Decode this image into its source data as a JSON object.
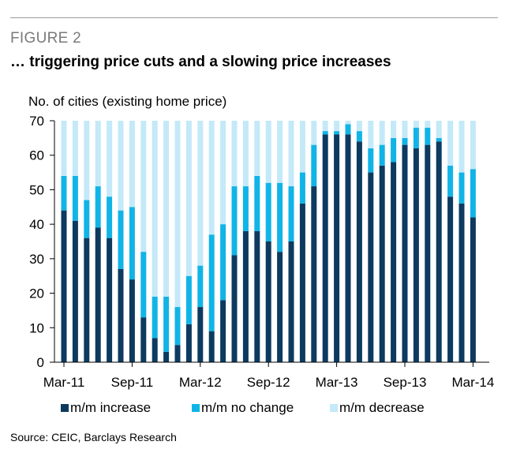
{
  "figure_label": "FIGURE 2",
  "title": "… triggering price cuts and a slowing price increases",
  "source": "Source: CEIC, Barclays Research",
  "colors": {
    "increase": "#0d3a5f",
    "no_change": "#11b4e6",
    "decrease": "#c4e9f8",
    "axis": "#000000"
  },
  "chart_data": {
    "type": "bar",
    "stacked": true,
    "title": "… triggering price cuts and a slowing price increases",
    "ylabel": "No. of cities (existing home price)",
    "xlabel": "",
    "ylim": [
      0,
      70
    ],
    "yticks": [
      0,
      10,
      20,
      30,
      40,
      50,
      60,
      70
    ],
    "xtick_labels": [
      "Mar-11",
      "Sep-11",
      "Mar-12",
      "Sep-12",
      "Mar-13",
      "Sep-13",
      "Mar-14"
    ],
    "xtick_indices": [
      0,
      6,
      12,
      18,
      24,
      30,
      36
    ],
    "categories": [
      "Mar-11",
      "Apr-11",
      "May-11",
      "Jun-11",
      "Jul-11",
      "Aug-11",
      "Sep-11",
      "Oct-11",
      "Nov-11",
      "Dec-11",
      "Jan-12",
      "Feb-12",
      "Mar-12",
      "Apr-12",
      "May-12",
      "Jun-12",
      "Jul-12",
      "Aug-12",
      "Sep-12",
      "Oct-12",
      "Nov-12",
      "Dec-12",
      "Jan-13",
      "Feb-13",
      "Mar-13",
      "Apr-13",
      "May-13",
      "Jun-13",
      "Jul-13",
      "Aug-13",
      "Sep-13",
      "Oct-13",
      "Nov-13",
      "Dec-13",
      "Jan-14",
      "Feb-14",
      "Mar-14"
    ],
    "legend_position": "bottom",
    "series": [
      {
        "name": "m/m increase",
        "color_key": "increase",
        "values": [
          44,
          41,
          36,
          39,
          36,
          27,
          24,
          13,
          7,
          3,
          5,
          11,
          16,
          9,
          18,
          31,
          38,
          38,
          35,
          32,
          35,
          46,
          51,
          66,
          66,
          66,
          64,
          55,
          57,
          58,
          63,
          62,
          63,
          64,
          48,
          46,
          42
        ]
      },
      {
        "name": "m/m no change",
        "color_key": "no_change",
        "values": [
          10,
          13,
          11,
          12,
          12,
          17,
          21,
          19,
          12,
          16,
          11,
          14,
          12,
          28,
          22,
          20,
          13,
          16,
          17,
          20,
          16,
          9,
          12,
          1,
          1,
          3,
          3,
          7,
          6,
          7,
          2,
          6,
          5,
          1,
          9,
          9,
          14
        ]
      },
      {
        "name": "m/m decrease",
        "color_key": "decrease",
        "values": [
          16,
          16,
          23,
          19,
          22,
          26,
          25,
          38,
          51,
          51,
          54,
          45,
          42,
          33,
          30,
          19,
          19,
          16,
          18,
          18,
          19,
          15,
          7,
          3,
          3,
          1,
          3,
          8,
          7,
          5,
          5,
          2,
          2,
          5,
          13,
          15,
          14
        ]
      }
    ]
  }
}
